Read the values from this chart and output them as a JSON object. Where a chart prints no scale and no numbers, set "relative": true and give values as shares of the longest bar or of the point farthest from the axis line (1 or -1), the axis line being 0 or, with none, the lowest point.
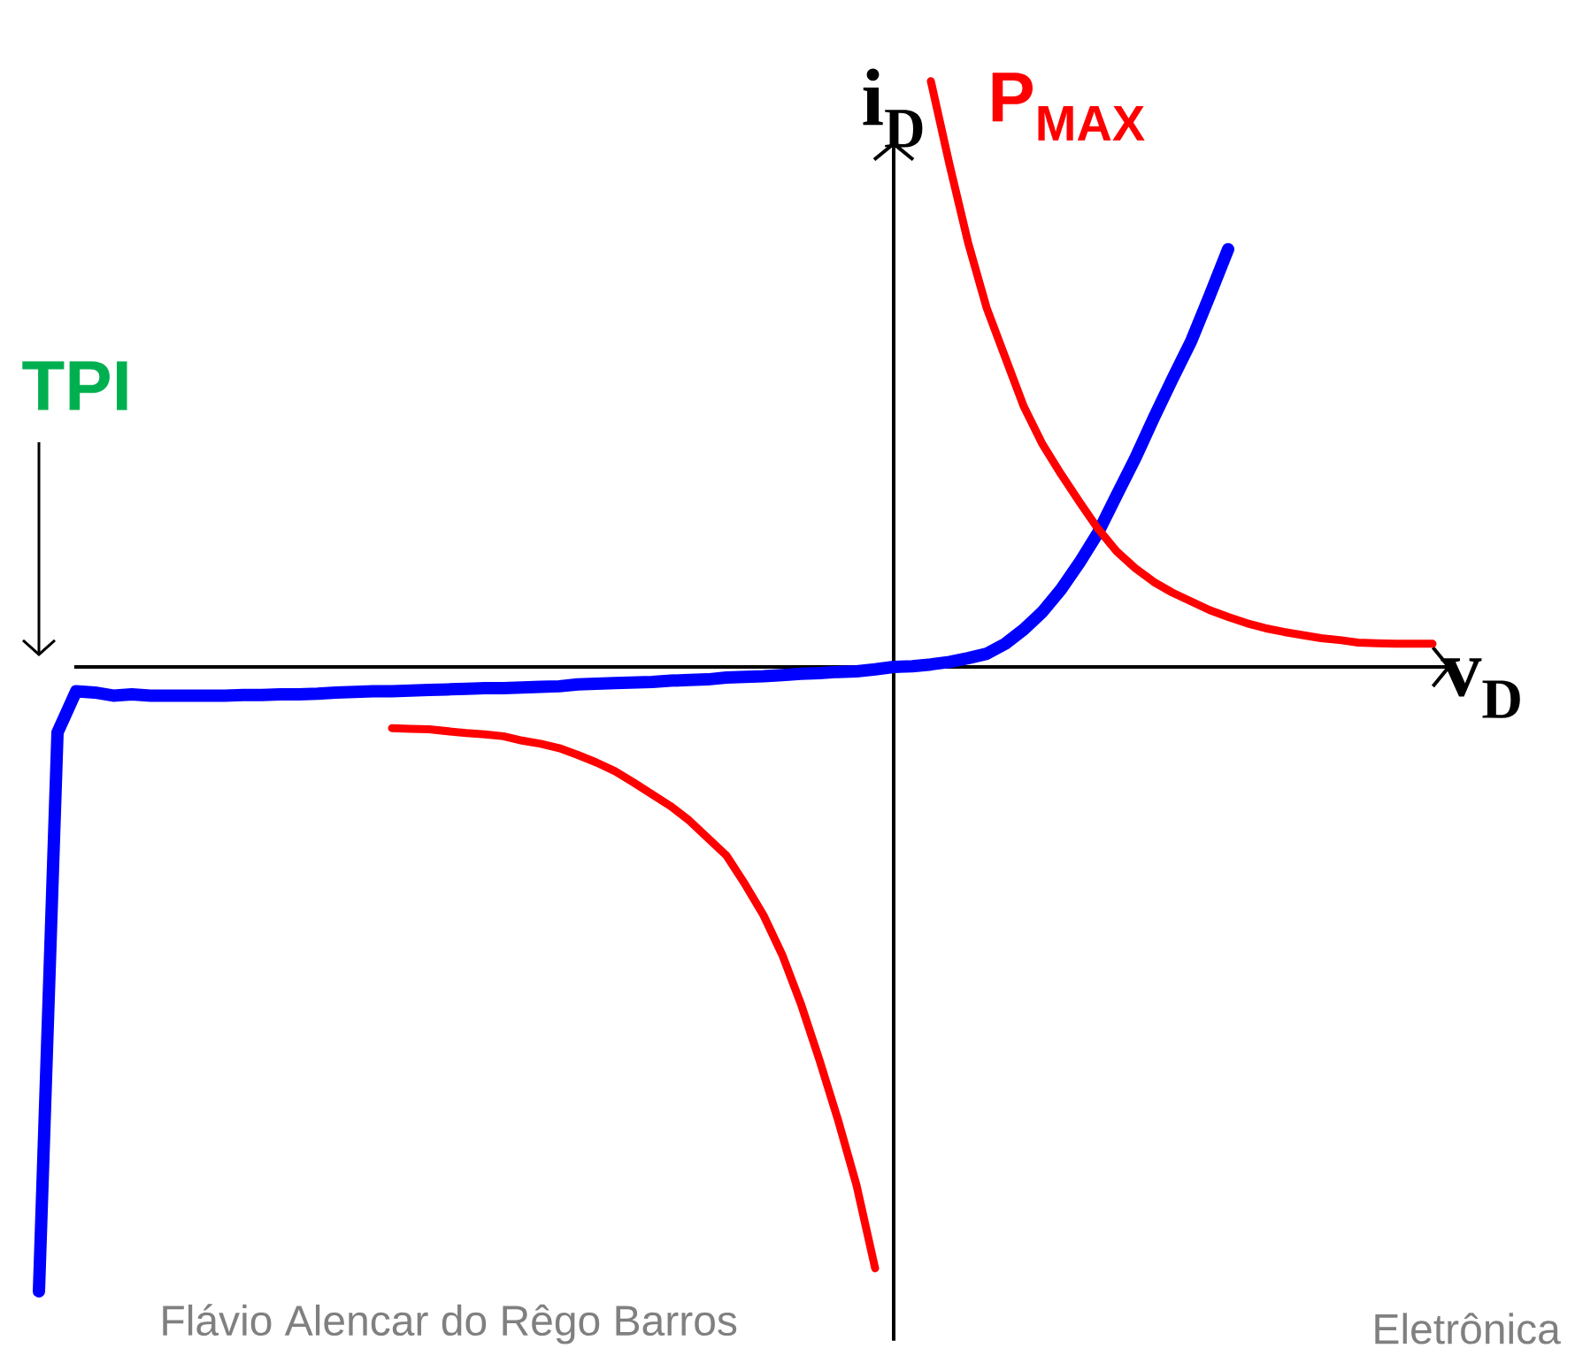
{
  "chart_data": {
    "type": "line",
    "relative": true,
    "xlabel": "v$_{D}$",
    "ylabel": "i$_{D}$",
    "categories": [
      null,
      null,
      null,
      null,
      null,
      null,
      null,
      null,
      null,
      null,
      null,
      null,
      null,
      null,
      null,
      null,
      null,
      null,
      null,
      null,
      null,
      null,
      null,
      null,
      null,
      null,
      null,
      null,
      null,
      null,
      null,
      null,
      null,
      null,
      null,
      null,
      null,
      null,
      null,
      null,
      null,
      null,
      null,
      null,
      null,
      null,
      null,
      null,
      null,
      null,
      null,
      null,
      null,
      null,
      null,
      null,
      null,
      null,
      null,
      null,
      null,
      null,
      null,
      null,
      null,
      null,
      null,
      null,
      null,
      null,
      null,
      null,
      null,
      null,
      null,
      null
    ],
    "series": [
      {
        "color": "#0000ff",
        "values": [
          -1,
          -0.105,
          -0.039,
          -0.041,
          -0.046,
          -0.044,
          -0.046,
          -0.046,
          -0.046,
          -0.046,
          -0.046,
          -0.045,
          -0.045,
          -0.044,
          -0.044,
          -0.043,
          -0.041,
          -0.04,
          -0.039,
          -0.039,
          -0.038,
          -0.037,
          -0.036,
          -0.035,
          -0.034,
          -0.034,
          -0.033,
          -0.032,
          -0.031,
          -0.028,
          -0.027,
          -0.026,
          -0.025,
          -0.024,
          -0.022,
          -0.021,
          -0.02,
          -0.017,
          -0.016,
          -0.015,
          -0.013,
          -0.011,
          -0.01,
          -0.008,
          -0.007,
          -0.004,
          0,
          0.001,
          0.004,
          0.008,
          0.014,
          0.021,
          0.037,
          0.06,
          0.088,
          0.124,
          0.167,
          0.215,
          0.275,
          0.334,
          0.399,
          0.461,
          0.521,
          0.594,
          0.669,
          null,
          null,
          null,
          null,
          null,
          null,
          null,
          null,
          null,
          null,
          null
        ]
      },
      {
        "name": "P$_{MAX}$",
        "color": "#ff0000",
        "values": [
          null,
          null,
          null,
          null,
          null,
          null,
          null,
          null,
          null,
          null,
          null,
          null,
          null,
          null,
          null,
          null,
          null,
          null,
          null,
          -0.098,
          -0.099,
          -0.1,
          -0.103,
          -0.106,
          -0.108,
          -0.111,
          -0.118,
          -0.123,
          -0.13,
          -0.141,
          -0.153,
          -0.167,
          -0.185,
          -0.204,
          -0.223,
          -0.246,
          -0.274,
          -0.302,
          -0.348,
          -0.398,
          -0.461,
          -0.539,
          -0.629,
          -0.725,
          -0.83,
          -0.963,
          null,
          null,
          0.938,
          0.805,
          0.68,
          0.575,
          0.496,
          0.417,
          0.357,
          0.309,
          0.264,
          0.221,
          0.185,
          0.158,
          0.136,
          0.119,
          0.105,
          0.091,
          0.08,
          0.07,
          0.062,
          0.056,
          0.051,
          0.046,
          0.043,
          0.039,
          0.038,
          0.037,
          0.037,
          0.037
        ]
      }
    ],
    "annotations": [
      "TPI",
      "Flávio Alencar do Rêgo Barros",
      "Eletrônica"
    ]
  }
}
